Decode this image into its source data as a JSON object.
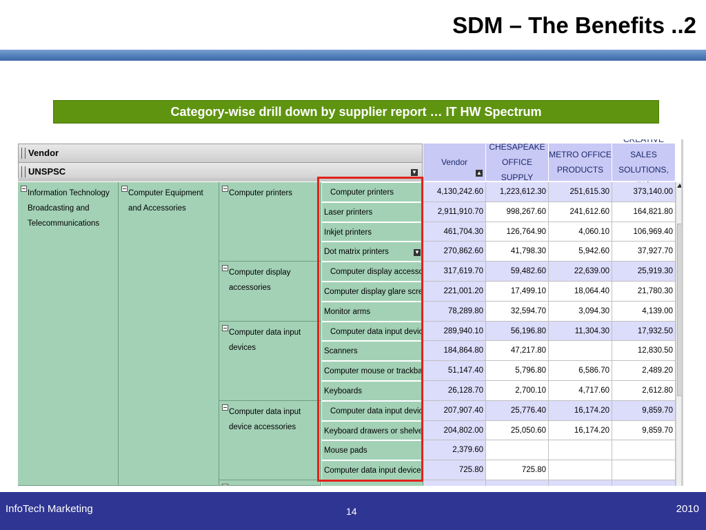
{
  "slide": {
    "title": "SDM – The Benefits ..2",
    "banner": "Category-wise drill down by supplier report … IT HW Spectrum"
  },
  "report": {
    "dim_bars": {
      "vendor": "Vendor",
      "unspsc": "UNSPSC"
    },
    "columns": [
      {
        "label": "Vendor"
      },
      {
        "label": "CHESAPEAKE OFFICE SUPPLY"
      },
      {
        "label": "METRO OFFICE PRODUCTS"
      },
      {
        "label": "CREATIVE SALES SOLUTIONS, INC"
      }
    ],
    "level1": "Information Technology Broadcasting and Telecommunications",
    "level2": "Computer Equipment and Accessories",
    "groups": [
      {
        "label": "Computer printers"
      },
      {
        "label": "Computer display accessories"
      },
      {
        "label": "Computer data input devices"
      },
      {
        "label": "Computer data input device accessories"
      }
    ],
    "rows": [
      {
        "label": "Computer printers",
        "values": [
          "4,130,242.60",
          "1,223,612.30",
          "251,615.30",
          "373,140.00"
        ]
      },
      {
        "label": "Laser printers",
        "values": [
          "2,911,910.70",
          "998,267.60",
          "241,612.60",
          "164,821.80"
        ]
      },
      {
        "label": "Inkjet printers",
        "values": [
          "461,704.30",
          "126,764.90",
          "4,060.10",
          "106,969.40"
        ]
      },
      {
        "label": "Dot matrix printers",
        "values": [
          "270,862.60",
          "41,798.30",
          "5,942.60",
          "37,927.70"
        ]
      },
      {
        "label": "Computer display accessorie",
        "values": [
          "317,619.70",
          "59,482.60",
          "22,639.00",
          "25,919.30"
        ]
      },
      {
        "label": "Computer display glare screens",
        "values": [
          "221,001.20",
          "17,499.10",
          "18,064.40",
          "21,780.30"
        ]
      },
      {
        "label": "Monitor arms",
        "values": [
          "78,289.80",
          "32,594.70",
          "3,094.30",
          "4,139.00"
        ]
      },
      {
        "label": "Computer data input devices",
        "values": [
          "289,940.10",
          "56,196.80",
          "11,304.30",
          "17,932.50"
        ]
      },
      {
        "label": "Scanners",
        "values": [
          "184,864.80",
          "47,217.80",
          "",
          "12,830.50"
        ]
      },
      {
        "label": "Computer mouse or trackballs",
        "values": [
          "51,147.40",
          "5,796.80",
          "6,586.70",
          "2,489.20"
        ]
      },
      {
        "label": "Keyboards",
        "values": [
          "26,128.70",
          "2,700.10",
          "4,717.60",
          "2,612.80"
        ]
      },
      {
        "label": "Computer data input device a",
        "values": [
          "207,907.40",
          "25,776.40",
          "16,174.20",
          "9,859.70"
        ]
      },
      {
        "label": "Keyboard drawers or shelves",
        "values": [
          "204,802.00",
          "25,050.60",
          "16,174.20",
          "9,859.70"
        ]
      },
      {
        "label": "Mouse pads",
        "values": [
          "2,379.60",
          "",
          "",
          ""
        ]
      },
      {
        "label": "Computer data input device cov",
        "values": [
          "725.80",
          "725.80",
          "",
          ""
        ]
      }
    ]
  },
  "footer": {
    "left": "InfoTech Marketing",
    "page": "14",
    "year": "2010"
  }
}
